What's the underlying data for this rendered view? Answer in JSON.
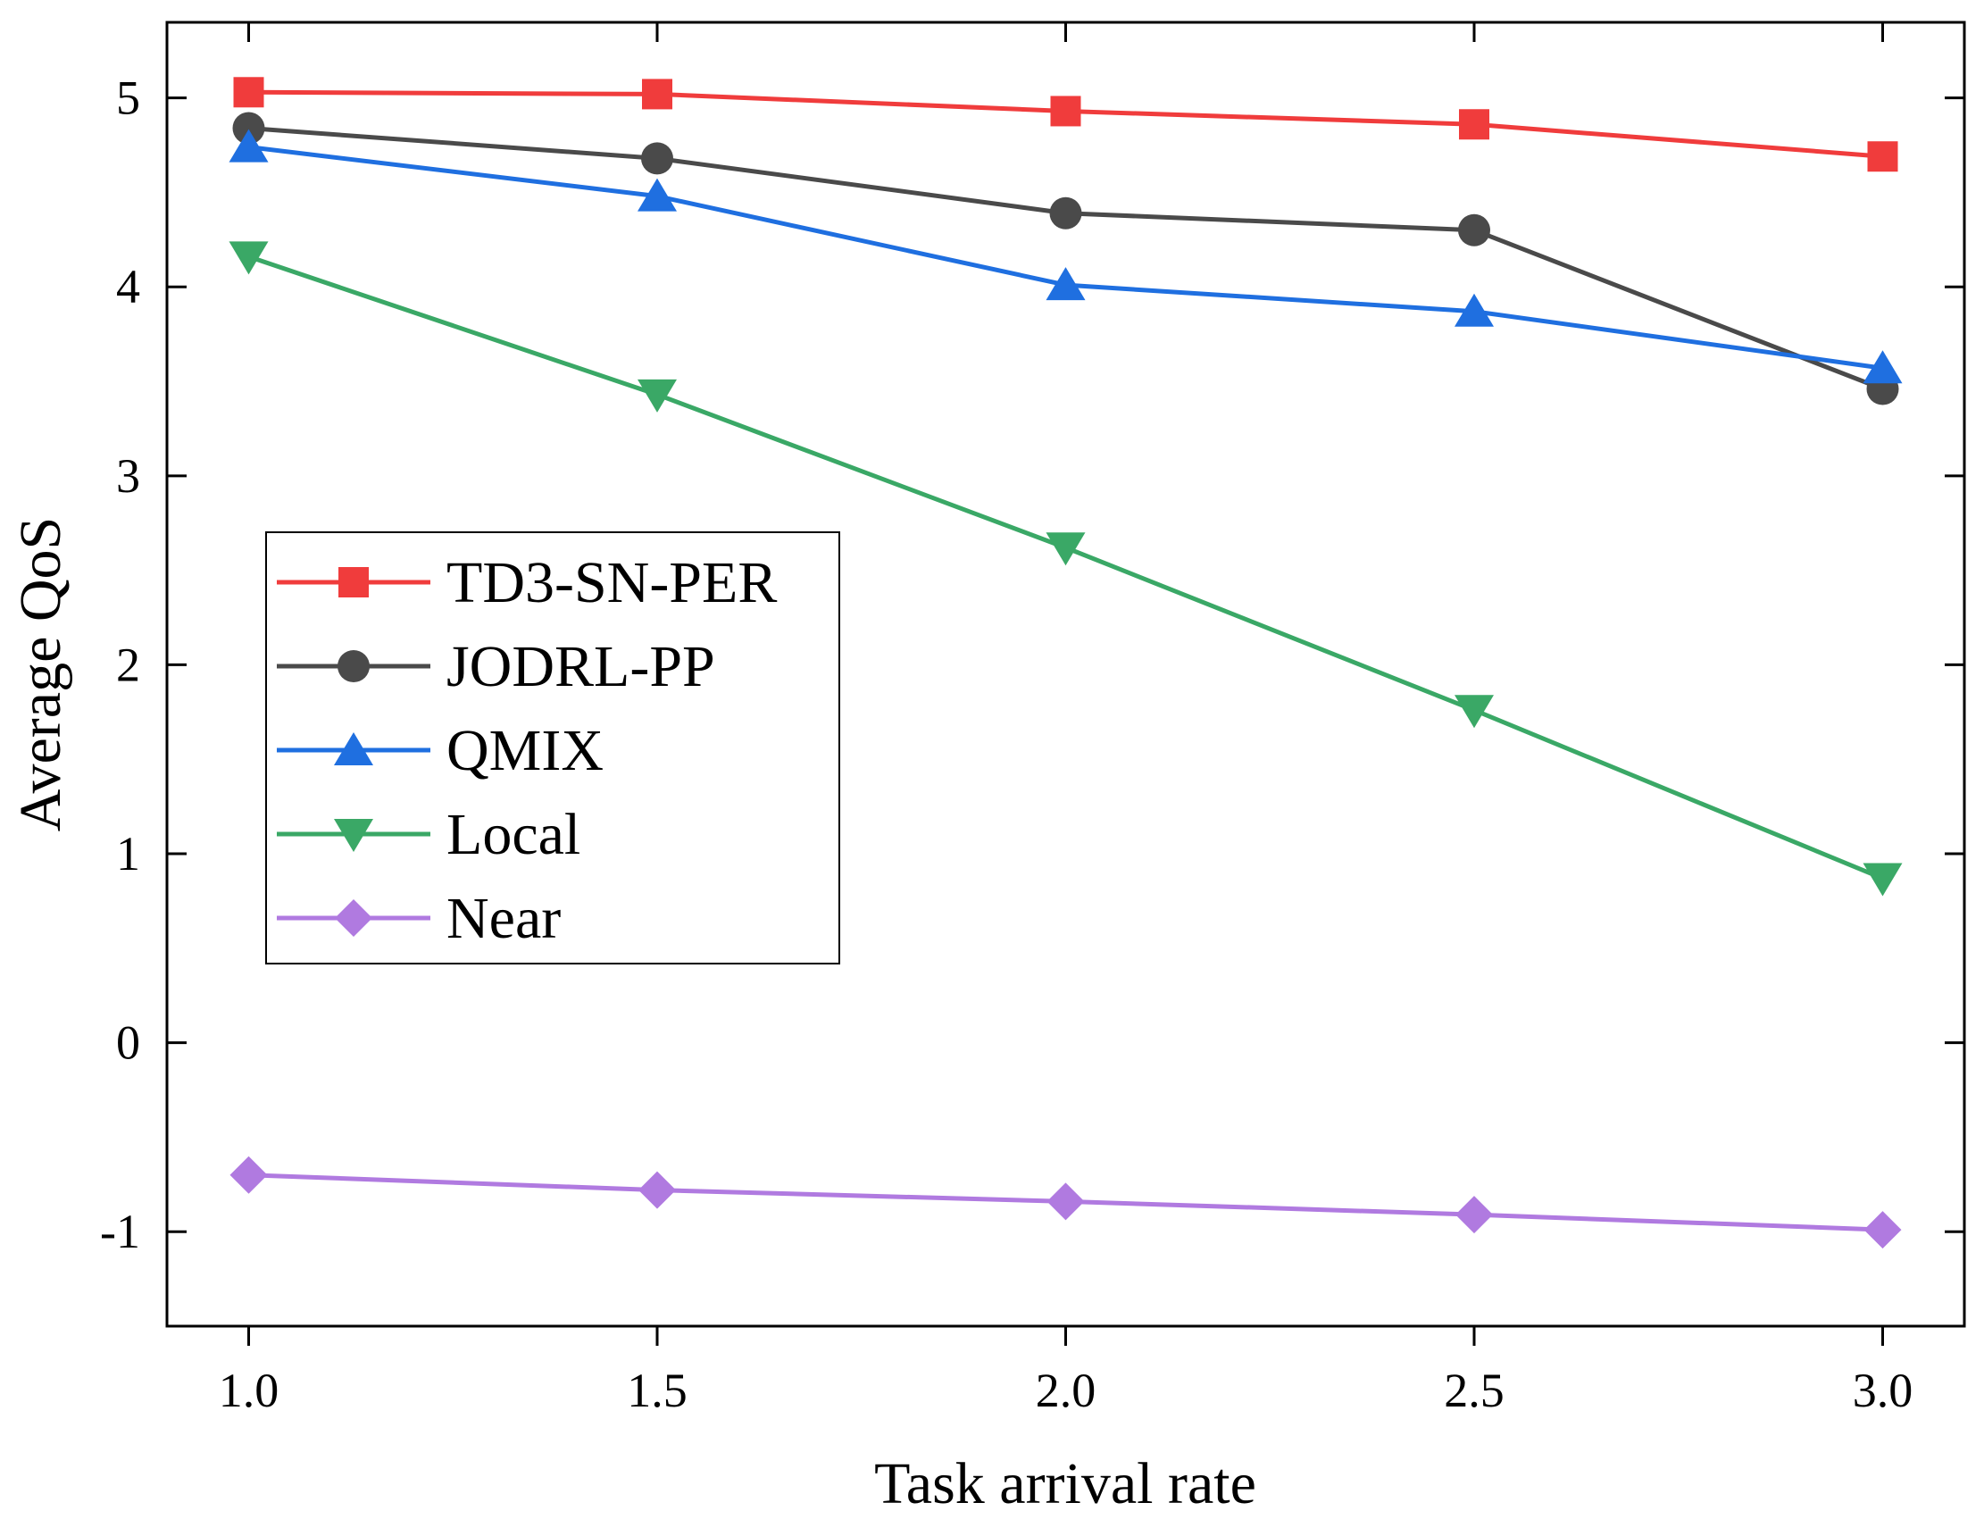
{
  "chart_data": {
    "type": "line",
    "title": "",
    "xlabel": "Task arrival rate",
    "ylabel": "Average QoS",
    "x": [
      1.0,
      1.5,
      2.0,
      2.5,
      3.0
    ],
    "x_tick_labels": [
      "1.0",
      "1.5",
      "2.0",
      "2.5",
      "3.0"
    ],
    "xlim": [
      0.9,
      3.1
    ],
    "y_ticks": [
      -1,
      0,
      1,
      2,
      3,
      4,
      5
    ],
    "y_tick_labels": [
      "-1",
      "0",
      "1",
      "2",
      "3",
      "4",
      "5"
    ],
    "ylim": [
      -1.5,
      5.4
    ],
    "grid": false,
    "legend_position": "center-left",
    "series": [
      {
        "name": "TD3-SN-PER",
        "color": "#f03c3c",
        "marker": "square",
        "values": [
          5.03,
          5.02,
          4.93,
          4.86,
          4.69
        ]
      },
      {
        "name": "JODRL-PP",
        "color": "#4a4a4a",
        "marker": "circle",
        "values": [
          4.84,
          4.68,
          4.39,
          4.3,
          3.46
        ]
      },
      {
        "name": "QMIX",
        "color": "#1f6fe0",
        "marker": "triangle-up",
        "values": [
          4.74,
          4.48,
          4.01,
          3.87,
          3.57
        ]
      },
      {
        "name": "Local",
        "color": "#3aa866",
        "marker": "triangle-down",
        "values": [
          4.16,
          3.43,
          2.62,
          1.76,
          0.87
        ]
      },
      {
        "name": "Near",
        "color": "#b07ae0",
        "marker": "diamond",
        "values": [
          -0.7,
          -0.78,
          -0.84,
          -0.91,
          -0.99
        ]
      }
    ]
  }
}
